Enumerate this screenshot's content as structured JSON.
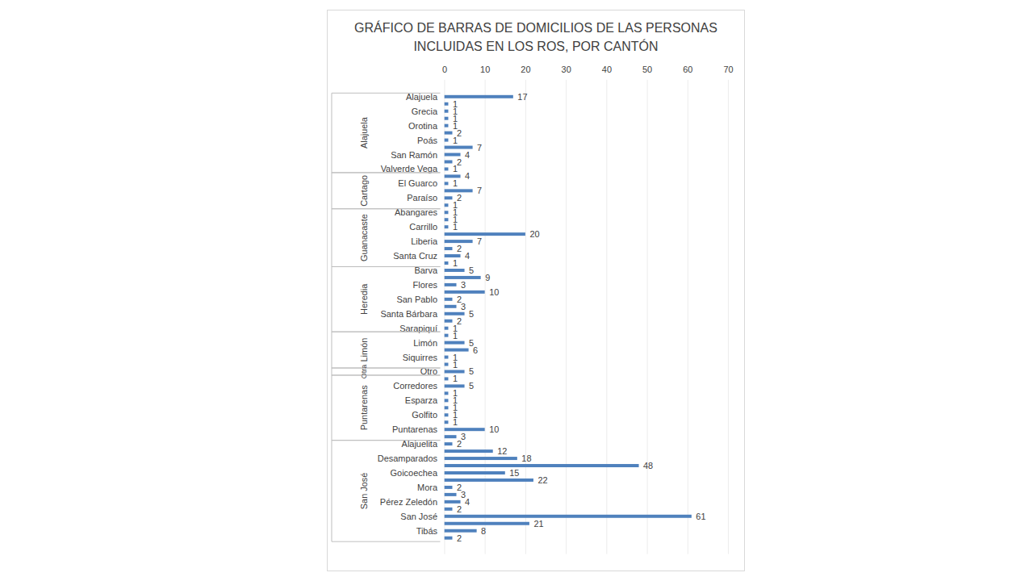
{
  "chart_data": {
    "type": "bar",
    "title": "GRÁFICO DE BARRAS DE DOMICILIOS DE LAS PERSONAS INCLUIDAS EN LOS ROS, POR CANTÓN",
    "orientation": "horizontal",
    "categories": [
      "Alajuela",
      null,
      "Grecia",
      null,
      "Orotina",
      null,
      "Poás",
      null,
      "San Ramón",
      null,
      "Valverde Vega",
      null,
      "El Guarco",
      null,
      "Paraíso",
      null,
      "Abangares",
      null,
      "Carrillo",
      null,
      "Liberia",
      null,
      "Santa Cruz",
      null,
      "Barva",
      null,
      "Flores",
      null,
      "San Pablo",
      null,
      "Santa Bárbara",
      null,
      "Sarapiquí",
      null,
      "Limón",
      null,
      "Siquirres",
      null,
      "Otro",
      null,
      "Corredores",
      null,
      "Esparza",
      null,
      "Golfito",
      null,
      "Puntarenas",
      null,
      "Alajuelita",
      null,
      "Desamparados",
      null,
      "Goicoechea",
      null,
      "Mora",
      null,
      "Pérez Zeledón",
      null,
      "San José",
      null,
      "Tibás",
      null
    ],
    "groups": [
      "Alajuela",
      "Alajuela",
      "Alajuela",
      "Alajuela",
      "Alajuela",
      "Alajuela",
      "Alajuela",
      "Alajuela",
      "Alajuela",
      "Alajuela",
      "Alajuela",
      "Cartago",
      "Cartago",
      "Cartago",
      "Cartago",
      "Cartago",
      "Guanacaste",
      "Guanacaste",
      "Guanacaste",
      "Guanacaste",
      "Guanacaste",
      "Guanacaste",
      "Guanacaste",
      "Guanacaste",
      "Heredia",
      "Heredia",
      "Heredia",
      "Heredia",
      "Heredia",
      "Heredia",
      "Heredia",
      "Heredia",
      "Heredia",
      "Limón",
      "Limón",
      "Limón",
      "Limón",
      "Limón",
      "Otra",
      "Puntarenas",
      "Puntarenas",
      "Puntarenas",
      "Puntarenas",
      "Puntarenas",
      "Puntarenas",
      "Puntarenas",
      "Puntarenas",
      "Puntarenas",
      "San José",
      "San José",
      "San José",
      "San José",
      "San José",
      "San José",
      "San José",
      "San José",
      "San José",
      "San José",
      "San José",
      "San José",
      "San José",
      "San José"
    ],
    "values": [
      17,
      1,
      1,
      1,
      1,
      2,
      1,
      7,
      4,
      2,
      1,
      4,
      1,
      7,
      2,
      1,
      1,
      1,
      1,
      20,
      7,
      2,
      4,
      1,
      5,
      9,
      3,
      10,
      2,
      3,
      5,
      2,
      1,
      1,
      5,
      6,
      1,
      1,
      5,
      1,
      5,
      1,
      1,
      1,
      1,
      1,
      10,
      3,
      2,
      12,
      18,
      48,
      15,
      22,
      2,
      3,
      4,
      2,
      61,
      21,
      8,
      2
    ],
    "color": "#4f81bd",
    "xlim": [
      0,
      70
    ],
    "xticks": [
      0,
      10,
      20,
      30,
      40,
      50,
      60,
      70
    ],
    "grid": true,
    "data_labels": true
  }
}
